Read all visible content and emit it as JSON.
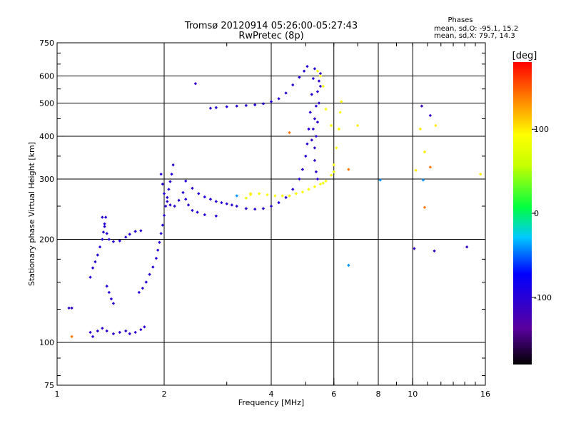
{
  "chart_data": {
    "type": "scatter",
    "title": "Tromsø 20120914 05:26:00-05:27:43",
    "subtitle": "RwPretec (8p)",
    "stats": {
      "heading": "Phases",
      "line1": "mean, sd,O: -95.1, 15.2",
      "line2": "mean, sd,X:  79.7, 14.3"
    },
    "xlabel": "Frequency [MHz]",
    "ylabel": "Stationary phase Virtual Height [km]",
    "xscale": "log",
    "yscale": "log",
    "xlim": [
      1,
      16
    ],
    "ylim": [
      75,
      750
    ],
    "grid": true,
    "xticks": [
      1,
      2,
      4,
      6,
      8,
      10,
      16
    ],
    "xtick_labels": [
      "1",
      "2",
      "4",
      "6",
      "8",
      "10",
      "16"
    ],
    "xgrid": [
      2,
      4,
      6,
      8,
      10
    ],
    "yticks": [
      75,
      100,
      200,
      300,
      400,
      500,
      600,
      750
    ],
    "ytick_labels": [
      "75",
      "100",
      "200",
      "300",
      "400",
      "500",
      "600",
      "750"
    ],
    "ygrid": [
      100,
      200,
      300,
      400,
      500,
      600
    ],
    "colorbar": {
      "label": "[deg]",
      "range": [
        -180,
        180
      ],
      "ticks": [
        100,
        0,
        -100
      ],
      "tick_labels": [
        "100",
        "0",
        "-100"
      ],
      "colormap": "rainbow"
    },
    "traces": [
      {
        "phase": -105,
        "points": [
          [
            1.08,
            126
          ],
          [
            1.1,
            126
          ]
        ]
      },
      {
        "phase": -100,
        "points": [
          [
            1.24,
            155
          ],
          [
            1.26,
            165
          ],
          [
            1.28,
            172
          ],
          [
            1.3,
            180
          ],
          [
            1.32,
            190
          ],
          [
            1.34,
            200
          ],
          [
            1.35,
            210
          ],
          [
            1.36,
            222
          ],
          [
            1.37,
            232
          ]
        ]
      },
      {
        "phase": -100,
        "points": [
          [
            1.34,
            232
          ],
          [
            1.36,
            218
          ],
          [
            1.38,
            208
          ],
          [
            1.4,
            200
          ],
          [
            1.44,
            197
          ],
          [
            1.5,
            198
          ],
          [
            1.56,
            203
          ],
          [
            1.6,
            207
          ],
          [
            1.66,
            211
          ],
          [
            1.72,
            212
          ]
        ]
      },
      {
        "phase": -100,
        "points": [
          [
            1.38,
            146
          ],
          [
            1.4,
            140
          ],
          [
            1.42,
            134
          ],
          [
            1.44,
            130
          ]
        ]
      },
      {
        "phase": -105,
        "points": [
          [
            1.24,
            107
          ],
          [
            1.26,
            104
          ],
          [
            1.3,
            108
          ],
          [
            1.34,
            110
          ],
          [
            1.38,
            108
          ],
          [
            1.44,
            106
          ],
          [
            1.5,
            107
          ],
          [
            1.56,
            108
          ],
          [
            1.6,
            106
          ],
          [
            1.66,
            107
          ],
          [
            1.72,
            109
          ],
          [
            1.76,
            111
          ]
        ]
      },
      {
        "phase": -100,
        "points": [
          [
            1.7,
            140
          ],
          [
            1.74,
            144
          ],
          [
            1.78,
            150
          ],
          [
            1.82,
            158
          ],
          [
            1.86,
            166
          ],
          [
            1.9,
            176
          ],
          [
            1.92,
            186
          ],
          [
            1.94,
            196
          ],
          [
            1.96,
            208
          ],
          [
            1.98,
            220
          ],
          [
            2.0,
            235
          ],
          [
            2.02,
            250
          ],
          [
            2.04,
            265
          ],
          [
            2.06,
            280
          ],
          [
            2.08,
            295
          ],
          [
            2.1,
            310
          ],
          [
            2.12,
            330
          ]
        ]
      },
      {
        "phase": -100,
        "points": [
          [
            1.96,
            310
          ],
          [
            1.98,
            290
          ],
          [
            2.0,
            272
          ],
          [
            2.04,
            258
          ],
          [
            2.08,
            252
          ],
          [
            2.14,
            250
          ],
          [
            2.2,
            260
          ],
          [
            2.26,
            274
          ],
          [
            2.3,
            262
          ],
          [
            2.34,
            252
          ],
          [
            2.4,
            243
          ],
          [
            2.48,
            240
          ],
          [
            2.6,
            236
          ],
          [
            2.8,
            234
          ]
        ]
      },
      {
        "phase": -100,
        "points": [
          [
            2.3,
            296
          ],
          [
            2.4,
            282
          ],
          [
            2.5,
            272
          ],
          [
            2.6,
            266
          ],
          [
            2.7,
            262
          ],
          [
            2.8,
            258
          ],
          [
            2.9,
            256
          ],
          [
            3.0,
            254
          ],
          [
            3.1,
            252
          ],
          [
            3.2,
            250
          ],
          [
            3.4,
            246
          ],
          [
            3.6,
            245
          ],
          [
            3.8,
            246
          ],
          [
            4.0,
            250
          ],
          [
            4.2,
            256
          ],
          [
            4.4,
            265
          ],
          [
            4.6,
            280
          ],
          [
            4.8,
            300
          ],
          [
            4.9,
            320
          ],
          [
            5.0,
            350
          ],
          [
            5.05,
            380
          ],
          [
            5.1,
            420
          ],
          [
            5.15,
            470
          ],
          [
            5.2,
            530
          ],
          [
            5.25,
            590
          ],
          [
            5.3,
            630
          ]
        ]
      },
      {
        "phase": -100,
        "points": [
          [
            2.7,
            483
          ],
          [
            2.8,
            485
          ],
          [
            3.0,
            488
          ],
          [
            3.2,
            490
          ],
          [
            3.4,
            492
          ],
          [
            3.6,
            494
          ],
          [
            3.8,
            498
          ],
          [
            4.0,
            505
          ],
          [
            4.2,
            515
          ],
          [
            4.4,
            535
          ],
          [
            4.6,
            565
          ],
          [
            4.8,
            595
          ],
          [
            4.95,
            620
          ],
          [
            5.05,
            640
          ]
        ]
      },
      {
        "phase": -105,
        "points": [
          [
            5.2,
            390
          ],
          [
            5.25,
            420
          ],
          [
            5.3,
            450
          ],
          [
            5.35,
            490
          ],
          [
            5.4,
            540
          ],
          [
            5.45,
            580
          ],
          [
            5.5,
            610
          ],
          [
            5.5,
            560
          ],
          [
            5.45,
            500
          ],
          [
            5.4,
            440
          ],
          [
            5.35,
            400
          ],
          [
            5.3,
            370
          ],
          [
            5.3,
            340
          ],
          [
            5.35,
            315
          ],
          [
            5.4,
            300
          ]
        ]
      },
      {
        "phase": 95,
        "points": [
          [
            3.5,
            270
          ],
          [
            3.7,
            272
          ],
          [
            3.9,
            270
          ],
          [
            4.1,
            268
          ],
          [
            4.3,
            268
          ],
          [
            4.5,
            268
          ],
          [
            4.7,
            272
          ],
          [
            4.9,
            275
          ],
          [
            5.1,
            280
          ],
          [
            5.3,
            285
          ],
          [
            5.5,
            290
          ],
          [
            5.7,
            296
          ],
          [
            5.9,
            308
          ],
          [
            6.0,
            330
          ],
          [
            6.1,
            370
          ],
          [
            6.2,
            420
          ],
          [
            6.25,
            470
          ]
        ]
      },
      {
        "phase": 90,
        "points": [
          [
            5.6,
            560
          ],
          [
            5.5,
            600
          ],
          [
            5.4,
            620
          ],
          [
            6.3,
            505
          ],
          [
            5.7,
            480
          ],
          [
            5.9,
            430
          ]
        ]
      },
      {
        "phase": -110,
        "points": [
          [
            2.45,
            570
          ],
          [
            11.5,
            185
          ],
          [
            14.2,
            190
          ],
          [
            10.1,
            188
          ],
          [
            10.6,
            490
          ],
          [
            11.2,
            460
          ]
        ]
      },
      {
        "phase": 100,
        "points": [
          [
            3.5,
            272
          ],
          [
            10.5,
            420
          ],
          [
            11.6,
            430
          ],
          [
            7.0,
            430
          ],
          [
            10.8,
            360
          ],
          [
            15.5,
            310
          ],
          [
            10.2,
            318
          ]
        ]
      },
      {
        "phase": 140,
        "points": [
          [
            1.1,
            104
          ],
          [
            4.5,
            410
          ],
          [
            6.6,
            320
          ],
          [
            11.2,
            325
          ],
          [
            10.8,
            248
          ]
        ]
      },
      {
        "phase": -40,
        "points": [
          [
            6.6,
            168
          ],
          [
            8.1,
            298
          ],
          [
            10.7,
            298
          ],
          [
            3.2,
            268
          ]
        ]
      },
      {
        "phase": 80,
        "points": [
          [
            3.4,
            264
          ],
          [
            5.6,
            292
          ],
          [
            6.0,
            315
          ]
        ]
      }
    ]
  }
}
